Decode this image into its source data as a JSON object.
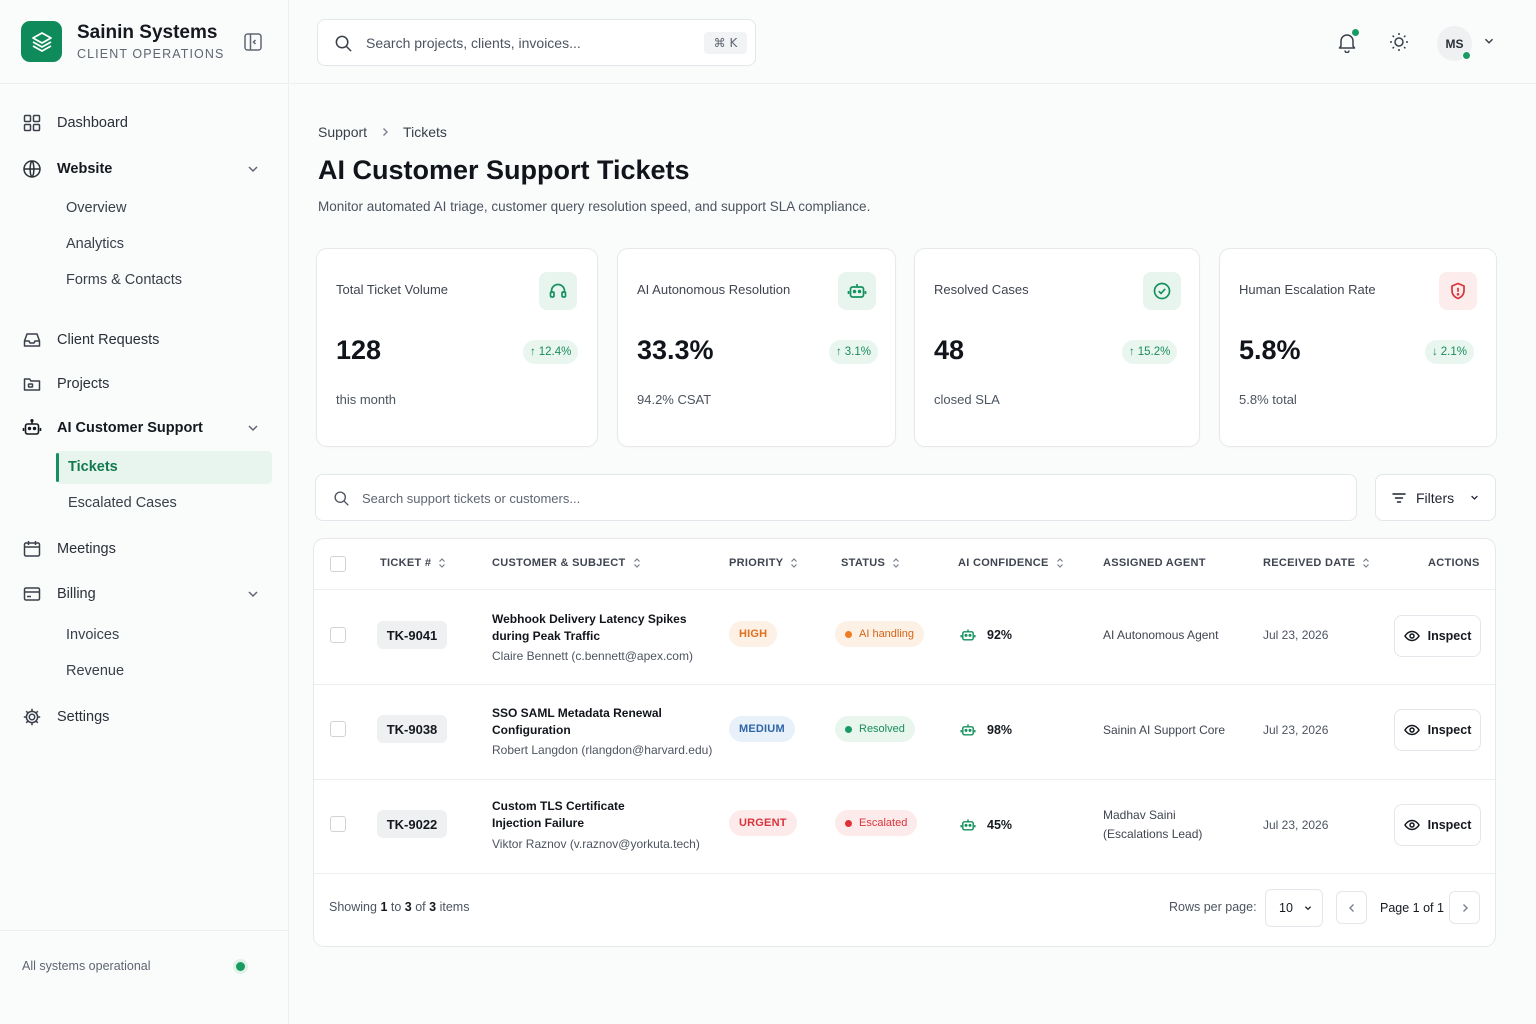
{
  "brand": {
    "name": "Sainin Systems",
    "subtitle": "CLIENT OPERATIONS"
  },
  "sidebar": {
    "dashboard": "Dashboard",
    "website": {
      "label": "Website",
      "items": [
        "Overview",
        "Analytics",
        "Forms & Contacts"
      ]
    },
    "client_requests": "Client Requests",
    "projects": "Projects",
    "ai_support": {
      "label": "AI Customer Support",
      "items": [
        "Tickets",
        "Escalated Cases"
      ]
    },
    "meetings": "Meetings",
    "billing": {
      "label": "Billing",
      "items": [
        "Invoices",
        "Revenue"
      ]
    },
    "settings": "Settings",
    "footer_status": "All systems operational"
  },
  "topbar": {
    "search_placeholder": "Search projects, clients, invoices...",
    "shortcut": "⌘ K",
    "avatar_initials": "MS"
  },
  "breadcrumb": {
    "parent": "Support",
    "current": "Tickets"
  },
  "page": {
    "title": "AI Customer Support Tickets",
    "description": "Monitor automated AI triage, customer query resolution speed, and support SLA compliance."
  },
  "stats": [
    {
      "label": "Total Ticket Volume",
      "value": "128",
      "trend": "12.4%",
      "trend_dir": "up",
      "foot": "this month",
      "icon": "headset-icon"
    },
    {
      "label": "AI Autonomous Resolution",
      "value": "33.3%",
      "trend": "3.1%",
      "trend_dir": "up",
      "foot": "94.2% CSAT",
      "icon": "robot-icon"
    },
    {
      "label": "Resolved Cases",
      "value": "48",
      "trend": "15.2%",
      "trend_dir": "up",
      "foot": "closed SLA",
      "icon": "check-circle-icon"
    },
    {
      "label": "Human Escalation Rate",
      "value": "5.8%",
      "trend": "2.1%",
      "trend_dir": "down",
      "foot": "5.8% total",
      "icon": "shield-alert-icon"
    }
  ],
  "table": {
    "search_placeholder": "Search support tickets or customers...",
    "filters_label": "Filters",
    "headers": {
      "ticket": "TICKET #",
      "customer": "CUSTOMER & SUBJECT",
      "priority": "PRIORITY",
      "status": "STATUS",
      "confidence": "AI CONFIDENCE",
      "agent": "ASSIGNED AGENT",
      "date": "RECEIVED DATE",
      "actions": "ACTIONS"
    },
    "rows": [
      {
        "id": "TK-9041",
        "subject": "Webhook Delivery Latency Spikes during Peak Traffic",
        "customer": "Claire Bennett (c.bennett@apex.com)",
        "priority": "HIGH",
        "status": "AI handling",
        "confidence": "92%",
        "agent": "AI Autonomous Agent",
        "date": "Jul 23, 2026",
        "action": "Inspect"
      },
      {
        "id": "TK-9038",
        "subject": "SSO SAML Metadata Renewal Configuration",
        "customer": "Robert Langdon (rlangdon@harvard.edu)",
        "priority": "MEDIUM",
        "status": "Resolved",
        "confidence": "98%",
        "agent": "Sainin AI Support Core",
        "date": "Jul 23, 2026",
        "action": "Inspect"
      },
      {
        "id": "TK-9022",
        "subject": "Custom TLS Certificate Injection Failure",
        "customer": "Viktor Raznov (v.raznov@yorkuta.tech)",
        "priority": "URGENT",
        "status": "Escalated",
        "confidence": "45%",
        "agent": "Madhav Saini (Escalations Lead)",
        "date": "Jul 23, 2026",
        "action": "Inspect"
      }
    ]
  },
  "pagination": {
    "showing_prefix": "Showing",
    "from": "1",
    "to_word": "to",
    "to": "3",
    "of_word": "of",
    "total": "3",
    "items_word": "items",
    "rows_per_page_label": "Rows per page:",
    "rows_per_page": "10",
    "page_text": "Page 1 of 1"
  },
  "colors": {
    "accent": "#0f8a5a",
    "high": "#e0701d",
    "medium": "#2f64a8",
    "urgent": "#d8343a",
    "success": "#1a9a63"
  }
}
